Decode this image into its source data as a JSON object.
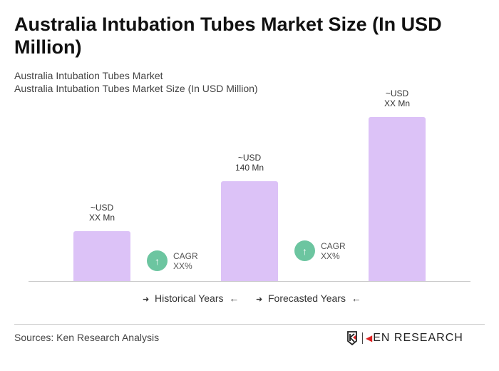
{
  "title": "Australia Intubation Tubes Market Size (In USD Million)",
  "subtitle1": "Australia Intubation Tubes Market",
  "subtitle2": "Australia Intubation Tubes Market Size (In USD Million)",
  "chart_data": {
    "type": "bar",
    "bars": [
      {
        "label_line1": "~USD",
        "label_line2": "XX Mn"
      },
      {
        "label_line1": "~USD",
        "label_line2": "140 Mn",
        "value": 140
      },
      {
        "label_line1": "~USD",
        "label_line2": "XX Mn"
      }
    ],
    "cagr": [
      {
        "label": "CAGR",
        "value": "XX%"
      },
      {
        "label": "CAGR",
        "value": "XX%"
      }
    ],
    "legend": {
      "historical": "Historical Years",
      "forecasted": "Forecasted Years"
    },
    "bar_color": "#dcc2f7",
    "cagr_color": "#6cc5a0",
    "grid": false
  },
  "source": "Sources: Ken Research Analysis",
  "logo": "KEN RESEARCH"
}
